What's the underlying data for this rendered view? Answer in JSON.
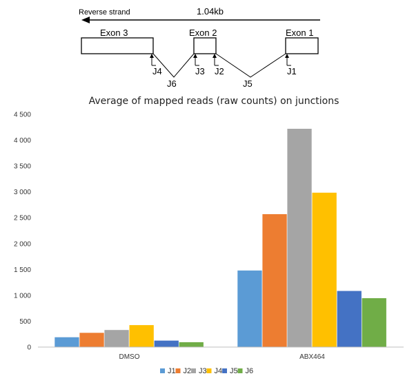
{
  "diagram": {
    "strand_label": "Reverse strand",
    "scale_label": "1.04kb",
    "exons": [
      "Exon 3",
      "Exon 2",
      "Exon 1"
    ],
    "junction_labels": [
      "J4",
      "J3",
      "J2",
      "J1",
      "J6",
      "J5"
    ]
  },
  "chart_data": {
    "type": "bar",
    "title": "Average of mapped reads (raw counts) on junctions",
    "categories": [
      "DMSO",
      "ABX464"
    ],
    "series": [
      {
        "name": "J1",
        "color": "#5B9BD5",
        "values": [
          190,
          1480
        ]
      },
      {
        "name": "J2",
        "color": "#ED7D31",
        "values": [
          275,
          2570
        ]
      },
      {
        "name": "J3",
        "color": "#A5A5A5",
        "values": [
          330,
          4220
        ]
      },
      {
        "name": "J4",
        "color": "#FFC000",
        "values": [
          425,
          2985
        ]
      },
      {
        "name": "J5",
        "color": "#4472C4",
        "values": [
          125,
          1085
        ]
      },
      {
        "name": "J6",
        "color": "#70AD47",
        "values": [
          95,
          945
        ]
      }
    ],
    "yticks": [
      "0",
      "500",
      "1 000",
      "1 500",
      "2 000",
      "2 500",
      "3 000",
      "3 500",
      "4 000",
      "4 500"
    ],
    "ylim": [
      0,
      4500
    ],
    "xlabel": "",
    "ylabel": "",
    "legend_position": "bottom",
    "grid": false
  }
}
